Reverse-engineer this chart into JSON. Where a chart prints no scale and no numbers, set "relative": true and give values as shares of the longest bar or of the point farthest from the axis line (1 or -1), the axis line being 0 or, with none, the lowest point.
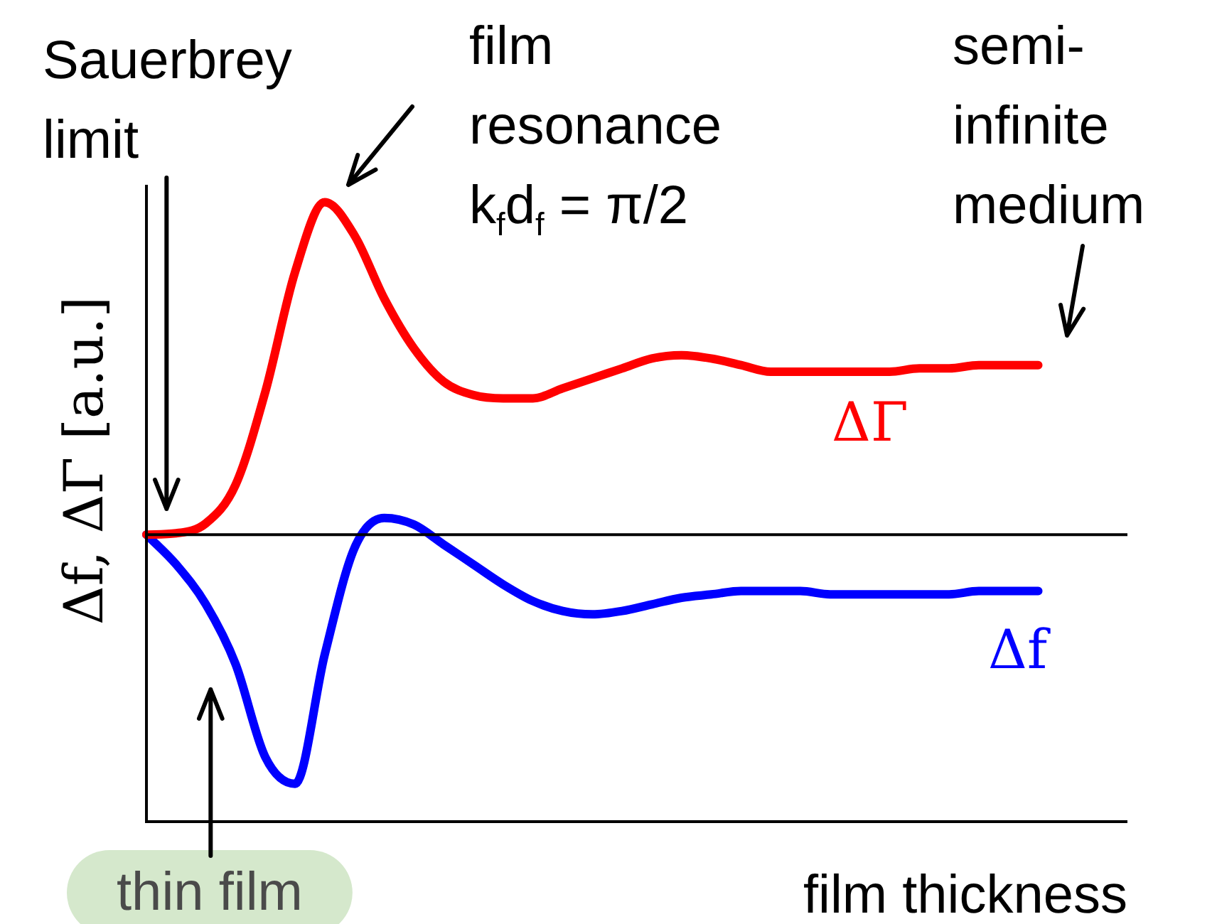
{
  "chart_data": {
    "type": "line",
    "relative": true,
    "xlabel": "film thickness",
    "ylabel": "Δf, ΔΓ [a.u.]",
    "legend": false,
    "marker": "none",
    "line_style": "solid",
    "categories": [
      null,
      null,
      null,
      null,
      null,
      null,
      null,
      null,
      null,
      null,
      null,
      null,
      null,
      null,
      null,
      null,
      null,
      null,
      null,
      null,
      null,
      null,
      null,
      null,
      null,
      null,
      null,
      null,
      null,
      null,
      null,
      null,
      null,
      null
    ],
    "series": [
      {
        "name": "ΔΓ",
        "color": "#ff0000",
        "values": [
          0,
          0.004,
          0.034,
          0.15,
          0.43,
          0.79,
          1,
          0.9,
          0.71,
          0.56,
          0.46,
          0.42,
          0.41,
          0.41,
          0.44,
          0.47,
          0.5,
          0.53,
          0.54,
          0.53,
          0.51,
          0.49,
          0.49,
          0.49,
          0.49,
          0.49,
          0.5,
          0.5,
          0.51,
          0.51,
          0.51,
          null,
          null,
          null
        ]
      },
      {
        "name": "Δf",
        "color": "#0000ff",
        "values": [
          0,
          -0.09,
          -0.21,
          -0.39,
          -0.67,
          -0.75,
          -0.36,
          -0.04,
          0.05,
          0.03,
          -0.03,
          -0.09,
          -0.15,
          -0.2,
          -0.23,
          -0.24,
          -0.23,
          -0.21,
          -0.19,
          -0.18,
          -0.17,
          -0.17,
          -0.17,
          -0.18,
          -0.18,
          -0.18,
          -0.18,
          -0.18,
          -0.17,
          -0.17,
          -0.17,
          null,
          null,
          null
        ]
      }
    ],
    "ref_lines": [
      {
        "axis": "y",
        "value": 0,
        "color": "#000000"
      }
    ],
    "annotations": [
      "Sauerbrey limit",
      "film resonance k$_{f}$d$_{f}$ = π/2",
      "semi-infinite medium",
      "thin film"
    ]
  }
}
